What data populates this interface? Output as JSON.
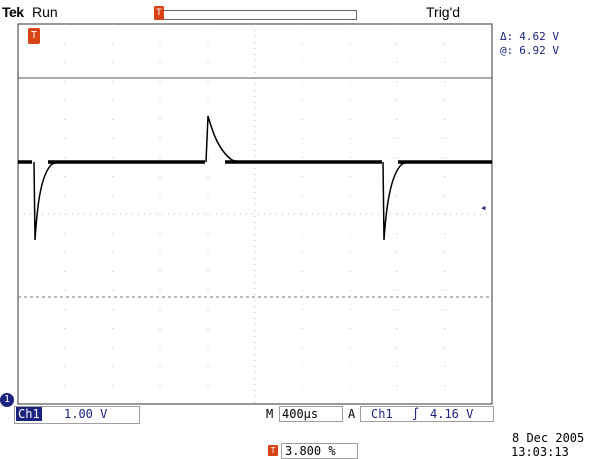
{
  "header": {
    "brand": "Tek",
    "acq_state": "Run",
    "trigger_status": "Trig'd"
  },
  "cursors": {
    "delta_symbol": "Δ:",
    "delta_value": "4.62 V",
    "abs_symbol": "@:",
    "abs_value": "6.92 V"
  },
  "markers": {
    "record_marker": "T",
    "trigger_position_marker": "T",
    "ground_marker": "1",
    "trigger_level_marker": "◂"
  },
  "status_bar": {
    "channel_label": "Ch1",
    "channel_scale": "1.00 V",
    "timebase_prefix": "M",
    "timebase": "400µs",
    "trigger_mode_symbol": "A",
    "trigger_source": "Ch1",
    "trigger_slope_symbol": "∫",
    "trigger_level": "4.16 V"
  },
  "footer": {
    "date": "8 Dec  2005",
    "time": "13:03:13",
    "position_icon": "T",
    "position_percent": "3.800 %"
  },
  "colors": {
    "trace": "#000000",
    "channel": "#1a237e",
    "marker": "#d84315",
    "grid": "#9e9e9e"
  }
}
